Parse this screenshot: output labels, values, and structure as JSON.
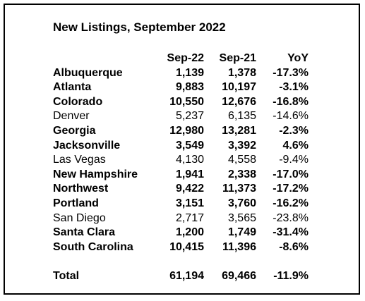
{
  "title": "New Listings, September 2022",
  "columns": {
    "name": "",
    "sep22": "Sep-22",
    "sep21": "Sep-21",
    "yoy": "YoY"
  },
  "rows": [
    {
      "name": "Albuquerque",
      "sep22": "1,139",
      "sep21": "1,378",
      "yoy": "-17.3%",
      "bold": true
    },
    {
      "name": "Atlanta",
      "sep22": "9,883",
      "sep21": "10,197",
      "yoy": "-3.1%",
      "bold": true
    },
    {
      "name": "Colorado",
      "sep22": "10,550",
      "sep21": "12,676",
      "yoy": "-16.8%",
      "bold": true
    },
    {
      "name": "Denver",
      "sep22": "5,237",
      "sep21": "6,135",
      "yoy": "-14.6%",
      "bold": false
    },
    {
      "name": "Georgia",
      "sep22": "12,980",
      "sep21": "13,281",
      "yoy": "-2.3%",
      "bold": true
    },
    {
      "name": "Jacksonville",
      "sep22": "3,549",
      "sep21": "3,392",
      "yoy": "4.6%",
      "bold": true
    },
    {
      "name": "Las Vegas",
      "sep22": "4,130",
      "sep21": "4,558",
      "yoy": "-9.4%",
      "bold": false
    },
    {
      "name": "New Hampshire",
      "sep22": "1,941",
      "sep21": "2,338",
      "yoy": "-17.0%",
      "bold": true
    },
    {
      "name": "Northwest",
      "sep22": "9,422",
      "sep21": "11,373",
      "yoy": "-17.2%",
      "bold": true
    },
    {
      "name": "Portland",
      "sep22": "3,151",
      "sep21": "3,760",
      "yoy": "-16.2%",
      "bold": true
    },
    {
      "name": "San Diego",
      "sep22": "2,717",
      "sep21": "3,565",
      "yoy": "-23.8%",
      "bold": false
    },
    {
      "name": "Santa Clara",
      "sep22": "1,200",
      "sep21": "1,749",
      "yoy": "-31.4%",
      "bold": true
    },
    {
      "name": "South Carolina",
      "sep22": "10,415",
      "sep21": "11,396",
      "yoy": "-8.6%",
      "bold": true
    }
  ],
  "total": {
    "name": "Total",
    "sep22": "61,194",
    "sep21": "69,466",
    "yoy": "-11.9%"
  }
}
